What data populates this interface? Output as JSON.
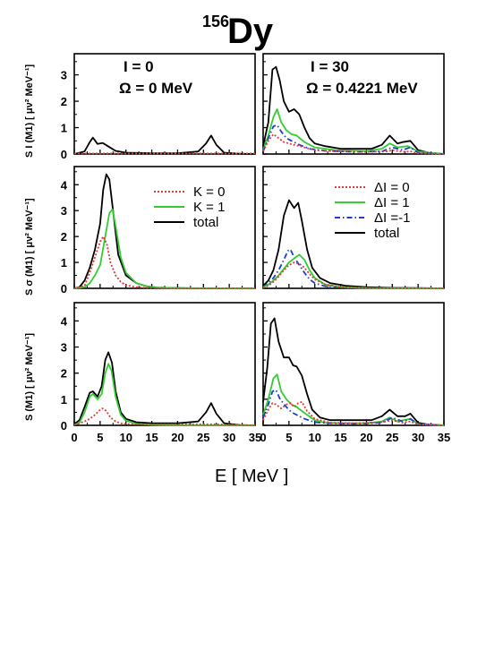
{
  "figure": {
    "title_mass": "156",
    "title_element": "Dy",
    "x_axis_label": "E [ MeV ]",
    "y_labels": {
      "top": "S I (M1) [ μν² MeV⁻¹]",
      "middle": "S σ (M1) [ μν² MeV⁻¹]",
      "bottom": "S (M1) [ μν² MeV⁻¹]"
    },
    "column_labels": [
      {
        "spin": "I = 0",
        "freq": "Ω = 0 MeV"
      },
      {
        "spin": "I = 30",
        "freq": "Ω = 0.4221 MeV"
      }
    ],
    "legend_left": [
      {
        "label": "K = 0",
        "color": "#e53935",
        "style": "dotted"
      },
      {
        "label": "K = 1",
        "color": "#33cc33",
        "style": "solid"
      },
      {
        "label": "total",
        "color": "#000000",
        "style": "solid"
      }
    ],
    "legend_right": [
      {
        "label": "ΔI = 0",
        "color": "#e53935",
        "style": "dotted"
      },
      {
        "label": "ΔI = 1",
        "color": "#33cc33",
        "style": "solid"
      },
      {
        "label": "ΔI =-1",
        "color": "#1a3fd0",
        "style": "dashdot"
      },
      {
        "label": "total",
        "color": "#000000",
        "style": "solid"
      }
    ]
  },
  "chart_data": [
    {
      "type": "line",
      "panel": "top-left",
      "xlim": [
        0,
        35
      ],
      "ylim": [
        0,
        3.8
      ],
      "xticks": [
        0,
        5,
        10,
        15,
        20,
        25,
        30,
        35
      ],
      "yticks": [
        0,
        1,
        2,
        3
      ],
      "series": [
        {
          "name": "total",
          "color": "#000000",
          "dash": "",
          "x": [
            0,
            2,
            3,
            3.6,
            4.5,
            5.5,
            6.5,
            8,
            10,
            15,
            20,
            24,
            25.5,
            26.5,
            27.5,
            29,
            32,
            35
          ],
          "y": [
            0,
            0.1,
            0.45,
            0.62,
            0.38,
            0.42,
            0.3,
            0.12,
            0.05,
            0.03,
            0.03,
            0.1,
            0.4,
            0.7,
            0.35,
            0.05,
            0.01,
            0
          ]
        },
        {
          "name": "flat",
          "color": "#e53935",
          "dash": "2,2",
          "x": [
            0,
            35
          ],
          "y": [
            0.02,
            0.02
          ]
        }
      ]
    },
    {
      "type": "line",
      "panel": "top-right",
      "xlim": [
        0,
        35
      ],
      "ylim": [
        0,
        3.8
      ],
      "xticks": [
        0,
        5,
        10,
        15,
        20,
        25,
        30,
        35
      ],
      "yticks": [
        0,
        1,
        2,
        3
      ],
      "series": [
        {
          "name": "total",
          "color": "#000000",
          "dash": "",
          "x": [
            0,
            1,
            1.8,
            2.5,
            3.2,
            4,
            5,
            6,
            7,
            8,
            9,
            10,
            12,
            15,
            18,
            21,
            23,
            24.5,
            26,
            27,
            28.5,
            30,
            32,
            35
          ],
          "y": [
            0.3,
            1.2,
            3.2,
            3.3,
            2.8,
            2.0,
            1.6,
            1.7,
            1.5,
            1.0,
            0.6,
            0.4,
            0.3,
            0.2,
            0.2,
            0.2,
            0.35,
            0.7,
            0.4,
            0.45,
            0.5,
            0.15,
            0.05,
            0
          ]
        },
        {
          "name": "ΔI = 1",
          "color": "#33cc33",
          "dash": "",
          "x": [
            0,
            1,
            2,
            2.7,
            3.5,
            4.5,
            5.5,
            6.5,
            8,
            10,
            14,
            20,
            23,
            24.5,
            26,
            28,
            30,
            35
          ],
          "y": [
            0.15,
            0.7,
            1.4,
            1.7,
            1.2,
            0.9,
            0.75,
            0.7,
            0.45,
            0.25,
            0.15,
            0.12,
            0.2,
            0.4,
            0.25,
            0.3,
            0.1,
            0
          ]
        },
        {
          "name": "ΔI =-1",
          "color": "#1a3fd0",
          "dash": "6,3,1.5,3",
          "x": [
            0,
            1,
            2,
            2.7,
            3.5,
            4.5,
            5.5,
            7,
            9,
            12,
            18,
            23,
            25,
            27,
            28.5,
            30,
            35
          ],
          "y": [
            0.1,
            0.6,
            1.05,
            1.1,
            0.85,
            0.6,
            0.5,
            0.35,
            0.2,
            0.12,
            0.08,
            0.1,
            0.25,
            0.15,
            0.25,
            0.05,
            0
          ]
        },
        {
          "name": "ΔI = 0",
          "color": "#e53935",
          "dash": "2,2",
          "x": [
            0,
            1,
            2,
            3,
            4,
            5,
            6,
            8,
            10,
            15,
            20,
            24,
            25,
            27,
            28.5,
            30,
            35
          ],
          "y": [
            0.1,
            0.5,
            0.75,
            0.6,
            0.45,
            0.4,
            0.35,
            0.25,
            0.15,
            0.1,
            0.08,
            0.1,
            0.15,
            0.08,
            0.1,
            0.03,
            0
          ]
        }
      ]
    },
    {
      "type": "line",
      "panel": "middle-left",
      "xlim": [
        0,
        35
      ],
      "ylim": [
        0,
        4.7
      ],
      "xticks": [
        0,
        5,
        10,
        15,
        20,
        25,
        30,
        35
      ],
      "yticks": [
        0,
        1,
        2,
        3,
        4
      ],
      "series": [
        {
          "name": "total",
          "color": "#000000",
          "dash": "",
          "x": [
            0,
            1,
            2,
            3,
            4,
            5,
            5.6,
            6.2,
            6.8,
            7.5,
            8.5,
            10,
            12,
            14,
            16,
            20,
            25,
            30,
            35
          ],
          "y": [
            0,
            0.05,
            0.3,
            0.8,
            1.5,
            2.5,
            3.8,
            4.4,
            4.2,
            3.0,
            1.3,
            0.5,
            0.2,
            0.08,
            0.03,
            0.01,
            0,
            0,
            0
          ]
        },
        {
          "name": "K = 1",
          "color": "#33cc33",
          "dash": "",
          "x": [
            0,
            2,
            3,
            4,
            5,
            6,
            6.8,
            7.4,
            8,
            9,
            10,
            12,
            14,
            16,
            20,
            35
          ],
          "y": [
            0,
            0.05,
            0.2,
            0.5,
            0.9,
            2.0,
            2.9,
            3.05,
            2.4,
            1.2,
            0.6,
            0.2,
            0.08,
            0.03,
            0.01,
            0
          ]
        },
        {
          "name": "K = 0",
          "color": "#e53935",
          "dash": "2,2",
          "x": [
            0,
            2,
            3,
            4,
            5,
            5.6,
            6.3,
            7,
            8,
            9,
            10,
            12,
            14,
            20,
            35
          ],
          "y": [
            0,
            0.1,
            0.6,
            1.2,
            1.8,
            2.0,
            1.7,
            1.0,
            0.5,
            0.25,
            0.12,
            0.05,
            0.02,
            0,
            0
          ]
        }
      ]
    },
    {
      "type": "line",
      "panel": "middle-right",
      "xlim": [
        0,
        35
      ],
      "ylim": [
        0,
        4.7
      ],
      "xticks": [
        0,
        5,
        10,
        15,
        20,
        25,
        30,
        35
      ],
      "yticks": [
        0,
        1,
        2,
        3,
        4
      ],
      "series": [
        {
          "name": "total",
          "color": "#000000",
          "dash": "",
          "x": [
            0,
            1,
            2,
            3,
            4,
            5,
            6,
            6.8,
            7.5,
            8.5,
            9.5,
            11,
            13,
            16,
            20,
            25,
            30,
            35
          ],
          "y": [
            0.1,
            0.3,
            0.7,
            1.5,
            2.8,
            3.4,
            3.1,
            3.3,
            2.6,
            1.5,
            0.8,
            0.4,
            0.2,
            0.1,
            0.05,
            0.02,
            0.01,
            0
          ]
        },
        {
          "name": "ΔI =-1",
          "color": "#1a3fd0",
          "dash": "6,3,1.5,3",
          "x": [
            0,
            1,
            2,
            3,
            4,
            4.8,
            5.3,
            6,
            7,
            8,
            9,
            10,
            12,
            15,
            20,
            35
          ],
          "y": [
            0.05,
            0.2,
            0.4,
            0.7,
            1.1,
            1.45,
            1.5,
            1.2,
            0.9,
            0.6,
            0.35,
            0.2,
            0.08,
            0.03,
            0.01,
            0
          ]
        },
        {
          "name": "ΔI = 1",
          "color": "#33cc33",
          "dash": "",
          "x": [
            0,
            1,
            2,
            3,
            4,
            5,
            6,
            7,
            8,
            9,
            10,
            12,
            15,
            20,
            35
          ],
          "y": [
            0.03,
            0.15,
            0.3,
            0.5,
            0.75,
            1.0,
            1.15,
            1.3,
            1.1,
            0.7,
            0.4,
            0.15,
            0.05,
            0.01,
            0
          ]
        },
        {
          "name": "ΔI = 0",
          "color": "#e53935",
          "dash": "2,2",
          "x": [
            0,
            1,
            2,
            3,
            4,
            5,
            6,
            7,
            8,
            9,
            10,
            12,
            15,
            20,
            35
          ],
          "y": [
            0.02,
            0.1,
            0.25,
            0.45,
            0.7,
            0.9,
            1.0,
            0.95,
            0.8,
            0.55,
            0.35,
            0.15,
            0.05,
            0.01,
            0
          ]
        }
      ]
    },
    {
      "type": "line",
      "panel": "bottom-left",
      "xlim": [
        0,
        35
      ],
      "ylim": [
        0,
        4.7
      ],
      "xticks": [
        0,
        5,
        10,
        15,
        20,
        25,
        30,
        35
      ],
      "yticks": [
        0,
        1,
        2,
        3,
        4
      ],
      "series": [
        {
          "name": "total",
          "color": "#000000",
          "dash": "",
          "x": [
            0,
            1,
            2,
            3,
            3.6,
            4.5,
            5.3,
            6,
            6.6,
            7.3,
            8,
            9,
            10,
            12,
            15,
            20,
            24,
            25.5,
            26.5,
            27.5,
            29,
            32,
            35
          ],
          "y": [
            0.05,
            0.2,
            0.7,
            1.25,
            1.3,
            1.1,
            1.5,
            2.5,
            2.8,
            2.4,
            1.3,
            0.5,
            0.25,
            0.12,
            0.08,
            0.08,
            0.15,
            0.5,
            0.85,
            0.45,
            0.08,
            0.01,
            0
          ]
        },
        {
          "name": "K = 1",
          "color": "#33cc33",
          "dash": "",
          "x": [
            0,
            1,
            2,
            3,
            3.6,
            4.5,
            5.3,
            6,
            6.6,
            7.2,
            8,
            9,
            10,
            12,
            15,
            20,
            35
          ],
          "y": [
            0.02,
            0.1,
            0.5,
            1.1,
            1.2,
            1.0,
            1.2,
            2.0,
            2.35,
            2.1,
            1.1,
            0.4,
            0.18,
            0.06,
            0.02,
            0,
            0
          ]
        },
        {
          "name": "K = 0",
          "color": "#e53935",
          "dash": "2,2",
          "x": [
            0,
            1,
            2,
            3,
            4,
            5,
            5.5,
            6.2,
            7,
            8,
            9,
            10,
            12,
            15,
            20,
            24,
            25.5,
            26.5,
            27.5,
            29,
            35
          ],
          "y": [
            0.03,
            0.08,
            0.15,
            0.25,
            0.4,
            0.6,
            0.65,
            0.55,
            0.3,
            0.15,
            0.08,
            0.05,
            0.04,
            0.04,
            0.04,
            0.04,
            0.04,
            0.04,
            0.04,
            0.03,
            0
          ]
        }
      ]
    },
    {
      "type": "line",
      "panel": "bottom-right",
      "xlim": [
        0,
        35
      ],
      "ylim": [
        0,
        4.7
      ],
      "xticks": [
        0,
        5,
        10,
        15,
        20,
        25,
        30,
        35
      ],
      "yticks": [
        0,
        1,
        2,
        3,
        4
      ],
      "series": [
        {
          "name": "total",
          "color": "#000000",
          "dash": "",
          "x": [
            0,
            0.8,
            1.5,
            2.2,
            3,
            4,
            5,
            5.8,
            6.5,
            7.5,
            8.5,
            9.5,
            11,
            13,
            17,
            21,
            23,
            24.5,
            26,
            27.5,
            28.5,
            30,
            32,
            35
          ],
          "y": [
            0.9,
            2.2,
            3.9,
            4.1,
            3.2,
            2.6,
            2.6,
            2.3,
            2.25,
            1.9,
            1.2,
            0.6,
            0.3,
            0.2,
            0.2,
            0.2,
            0.35,
            0.6,
            0.35,
            0.35,
            0.45,
            0.1,
            0.03,
            0
          ]
        },
        {
          "name": "ΔI = 1",
          "color": "#33cc33",
          "dash": "",
          "x": [
            0,
            1,
            2,
            2.7,
            3.5,
            4.5,
            5.5,
            6.5,
            7.5,
            8.5,
            10,
            12,
            15,
            20,
            23,
            24.5,
            26,
            28.5,
            30,
            35
          ],
          "y": [
            0.4,
            1.0,
            1.8,
            1.95,
            1.3,
            1.0,
            0.8,
            0.7,
            0.55,
            0.4,
            0.2,
            0.1,
            0.08,
            0.08,
            0.15,
            0.3,
            0.15,
            0.25,
            0.05,
            0
          ]
        },
        {
          "name": "ΔI =-1",
          "color": "#1a3fd0",
          "dash": "6,3,1.5,3",
          "x": [
            0,
            1,
            1.8,
            2.5,
            3.3,
            4.5,
            5.5,
            6.5,
            8,
            10,
            13,
            18,
            23,
            25,
            27,
            28.5,
            30,
            35
          ],
          "y": [
            0.3,
            0.8,
            1.3,
            1.35,
            1.0,
            0.7,
            0.5,
            0.4,
            0.25,
            0.12,
            0.08,
            0.06,
            0.1,
            0.3,
            0.15,
            0.25,
            0.05,
            0
          ]
        },
        {
          "name": "ΔI = 0",
          "color": "#e53935",
          "dash": "2,2",
          "x": [
            0,
            1,
            1.8,
            2.5,
            3.5,
            4.5,
            5.3,
            6,
            6.8,
            7.5,
            8.5,
            10,
            13,
            18,
            23,
            25,
            27,
            28.5,
            30,
            35
          ],
          "y": [
            0.2,
            0.6,
            0.85,
            0.8,
            0.65,
            0.8,
            0.85,
            0.7,
            0.85,
            0.9,
            0.55,
            0.25,
            0.1,
            0.08,
            0.12,
            0.2,
            0.1,
            0.15,
            0.04,
            0
          ]
        }
      ]
    }
  ]
}
